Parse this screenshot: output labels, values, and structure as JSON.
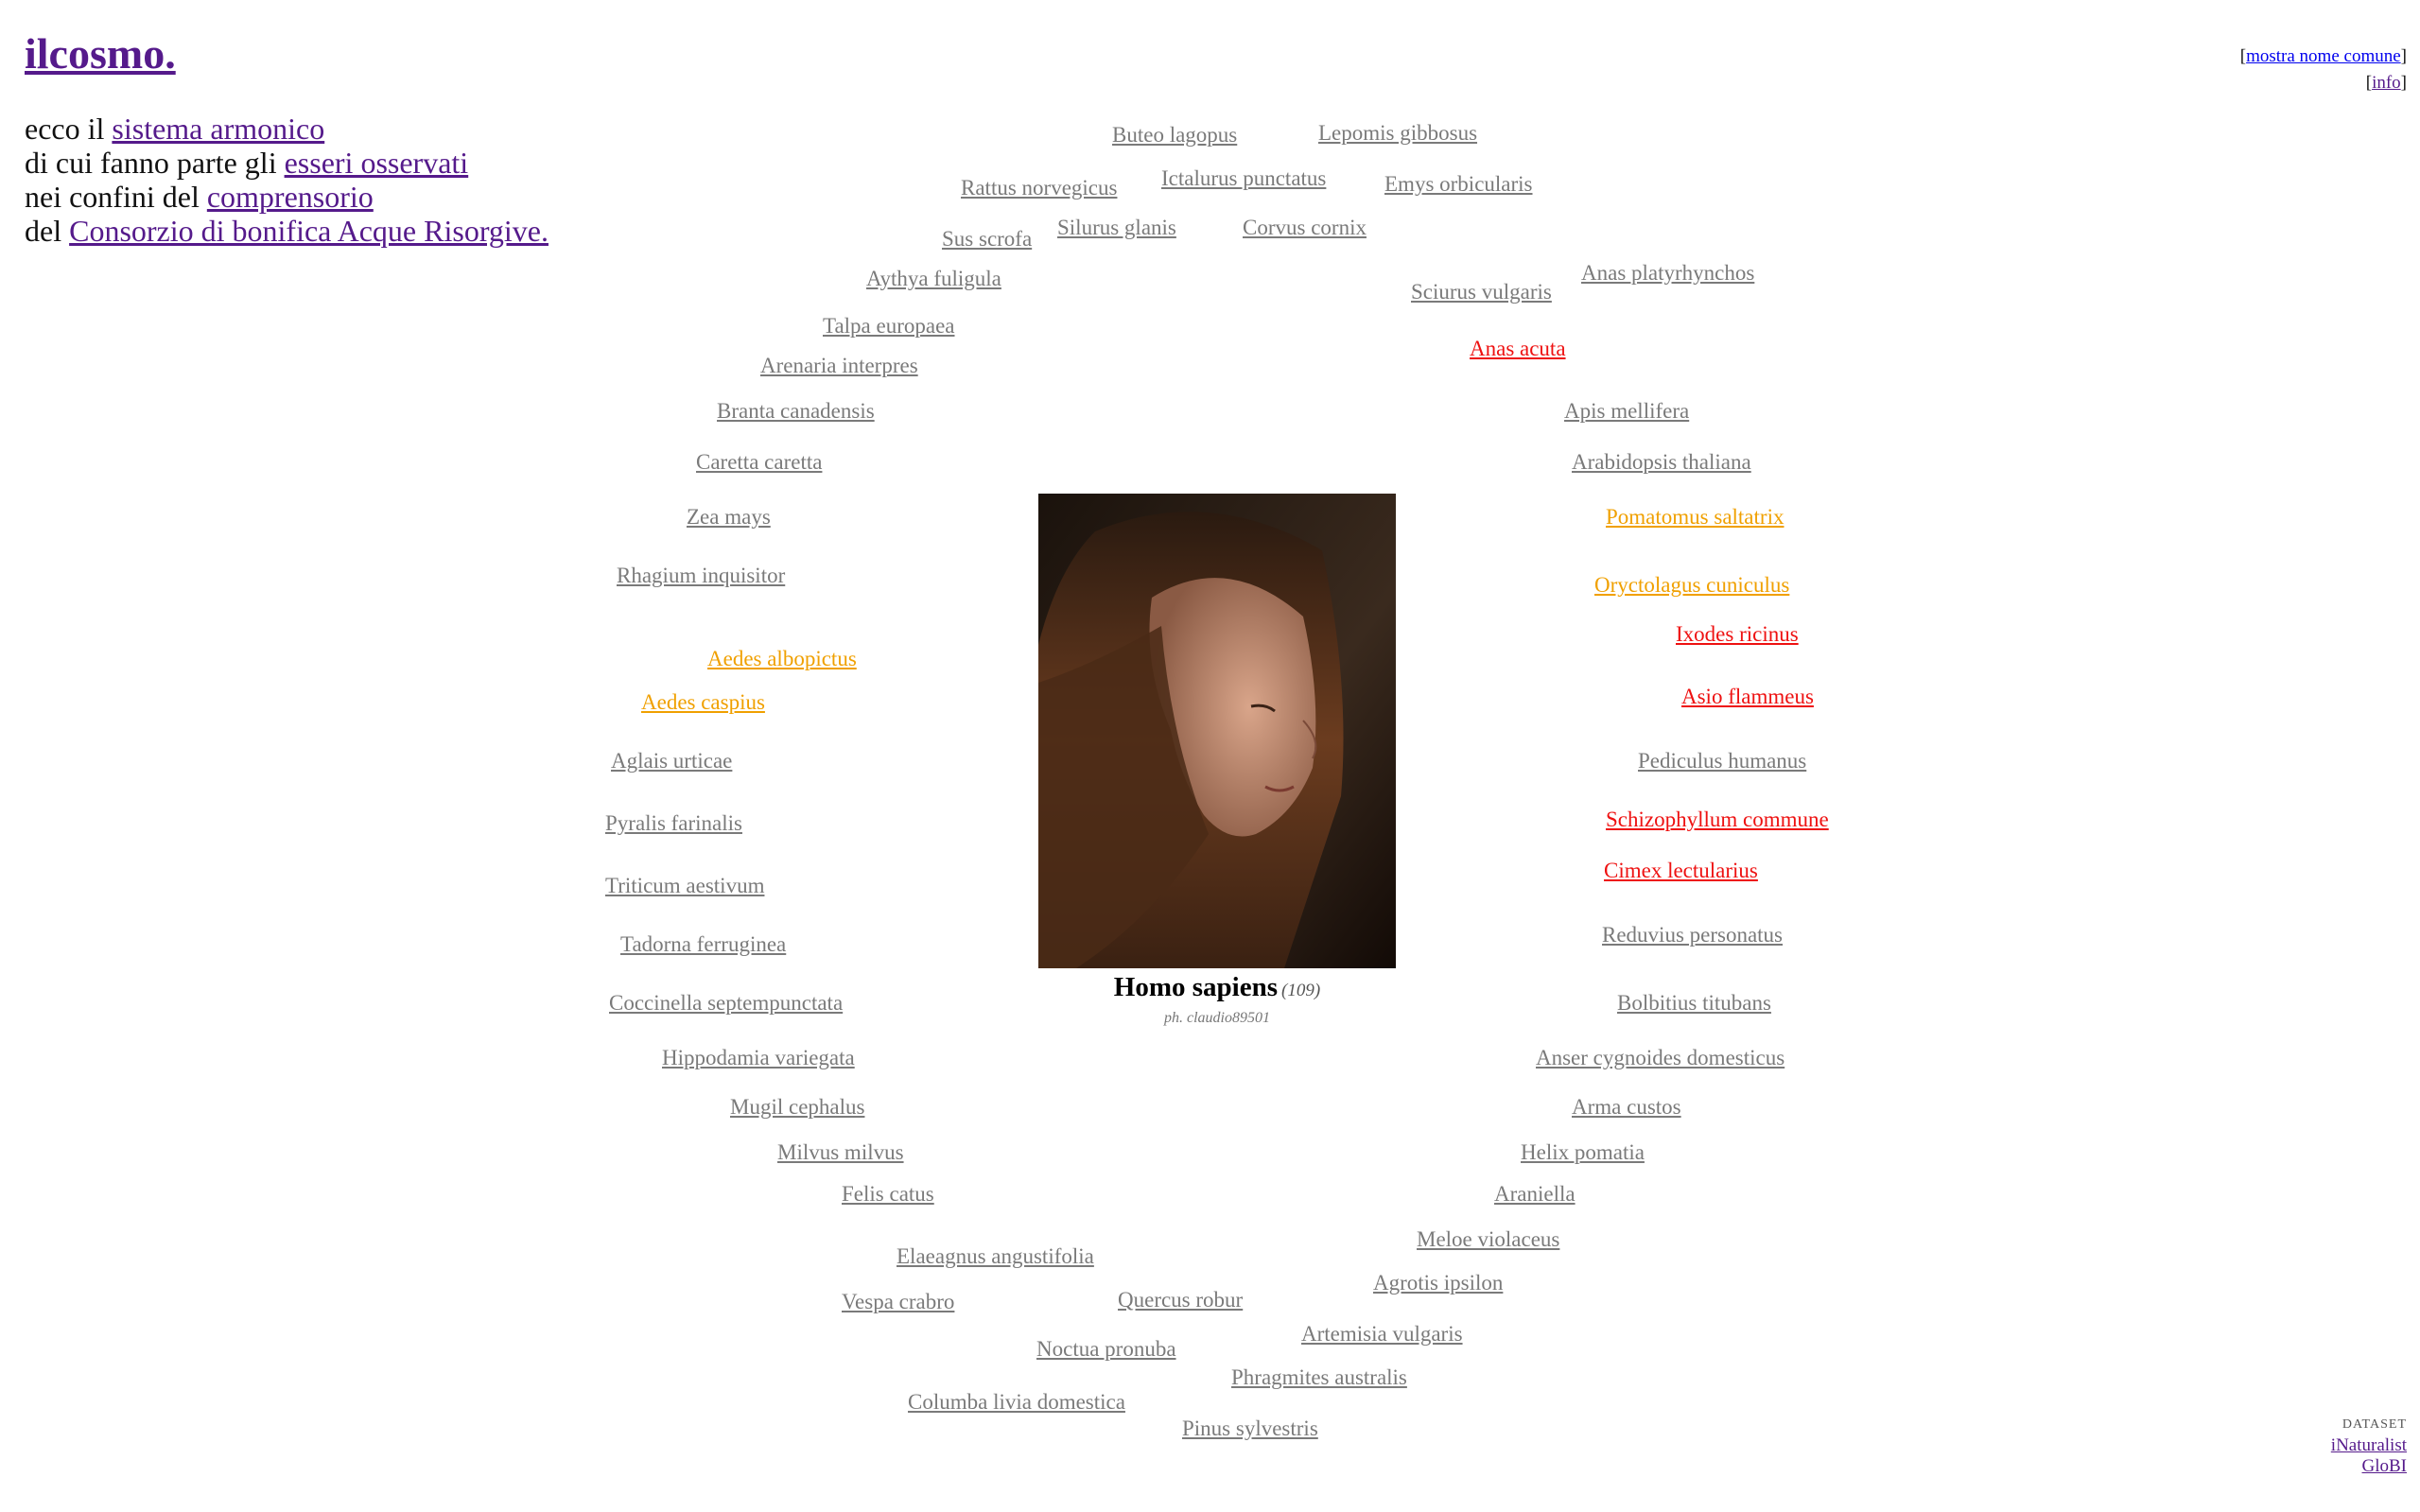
{
  "brand": {
    "logo": "ilcosmo."
  },
  "intro": {
    "line1_text": "ecco il ",
    "line1_link": "sistema armonico",
    "line2_text": "di cui fanno parte gli ",
    "line2_link": "esseri osservati",
    "line3_text": "nei confini del ",
    "line3_link": "comprensorio",
    "line4_text": "del ",
    "line4_link": "Consorzio di bonifica Acque Risorgive."
  },
  "topright": {
    "open1": "[",
    "common_name_link": "mostra nome comune",
    "close1": "]",
    "open2": "[",
    "info_link": "info",
    "close2": "]"
  },
  "center": {
    "name": "Homo sapiens",
    "count": "(109)",
    "credit": "ph. claudio89501"
  },
  "dataset": {
    "label": "DATASET",
    "inaturalist": "iNaturalist",
    "globi": "GloBI"
  },
  "colors": {
    "gray": "#7a7a7a",
    "red": "#ee1111",
    "orange": "#f0a000",
    "visited": "#551a8b"
  },
  "species": [
    {
      "name": "Buteo lagopus",
      "color": "gray"
    },
    {
      "name": "Lepomis gibbosus",
      "color": "gray"
    },
    {
      "name": "Rattus norvegicus",
      "color": "gray"
    },
    {
      "name": "Ictalurus punctatus",
      "color": "gray"
    },
    {
      "name": "Emys orbicularis",
      "color": "gray"
    },
    {
      "name": "Sus scrofa",
      "color": "gray"
    },
    {
      "name": "Silurus glanis",
      "color": "gray"
    },
    {
      "name": "Corvus cornix",
      "color": "gray"
    },
    {
      "name": "Aythya fuligula",
      "color": "gray"
    },
    {
      "name": "Sciurus vulgaris",
      "color": "gray"
    },
    {
      "name": "Anas platyrhynchos",
      "color": "gray"
    },
    {
      "name": "Talpa europaea",
      "color": "gray"
    },
    {
      "name": "Anas acuta",
      "color": "red"
    },
    {
      "name": "Arenaria interpres",
      "color": "gray"
    },
    {
      "name": "Branta canadensis",
      "color": "gray"
    },
    {
      "name": "Apis mellifera",
      "color": "gray"
    },
    {
      "name": "Caretta caretta",
      "color": "gray"
    },
    {
      "name": "Arabidopsis thaliana",
      "color": "gray"
    },
    {
      "name": "Zea mays",
      "color": "gray"
    },
    {
      "name": "Pomatomus saltatrix",
      "color": "orange"
    },
    {
      "name": "Rhagium inquisitor",
      "color": "gray"
    },
    {
      "name": "Oryctolagus cuniculus",
      "color": "orange"
    },
    {
      "name": "Ixodes ricinus",
      "color": "red"
    },
    {
      "name": "Aedes albopictus",
      "color": "orange"
    },
    {
      "name": "Aedes caspius",
      "color": "orange"
    },
    {
      "name": "Asio flammeus",
      "color": "red"
    },
    {
      "name": "Aglais urticae",
      "color": "gray"
    },
    {
      "name": "Pediculus humanus",
      "color": "gray"
    },
    {
      "name": "Schizophyllum commune",
      "color": "red"
    },
    {
      "name": "Pyralis farinalis",
      "color": "gray"
    },
    {
      "name": "Cimex lectularius",
      "color": "red"
    },
    {
      "name": "Triticum aestivum",
      "color": "gray"
    },
    {
      "name": "Reduvius personatus",
      "color": "gray"
    },
    {
      "name": "Tadorna ferruginea",
      "color": "gray"
    },
    {
      "name": "Coccinella septempunctata",
      "color": "gray"
    },
    {
      "name": "Bolbitius titubans",
      "color": "gray"
    },
    {
      "name": "Hippodamia variegata",
      "color": "gray"
    },
    {
      "name": "Anser cygnoides domesticus",
      "color": "gray"
    },
    {
      "name": "Mugil cephalus",
      "color": "gray"
    },
    {
      "name": "Arma custos",
      "color": "gray"
    },
    {
      "name": "Milvus milvus",
      "color": "gray"
    },
    {
      "name": "Helix pomatia",
      "color": "gray"
    },
    {
      "name": "Felis catus",
      "color": "gray"
    },
    {
      "name": "Araniella",
      "color": "gray"
    },
    {
      "name": "Meloe violaceus",
      "color": "gray"
    },
    {
      "name": "Elaeagnus angustifolia",
      "color": "gray"
    },
    {
      "name": "Agrotis ipsilon",
      "color": "gray"
    },
    {
      "name": "Vespa crabro",
      "color": "gray"
    },
    {
      "name": "Quercus robur",
      "color": "gray"
    },
    {
      "name": "Artemisia vulgaris",
      "color": "gray"
    },
    {
      "name": "Noctua pronuba",
      "color": "gray"
    },
    {
      "name": "Phragmites australis",
      "color": "gray"
    },
    {
      "name": "Columba livia domestica",
      "color": "gray"
    },
    {
      "name": "Pinus sylvestris",
      "color": "gray"
    }
  ]
}
